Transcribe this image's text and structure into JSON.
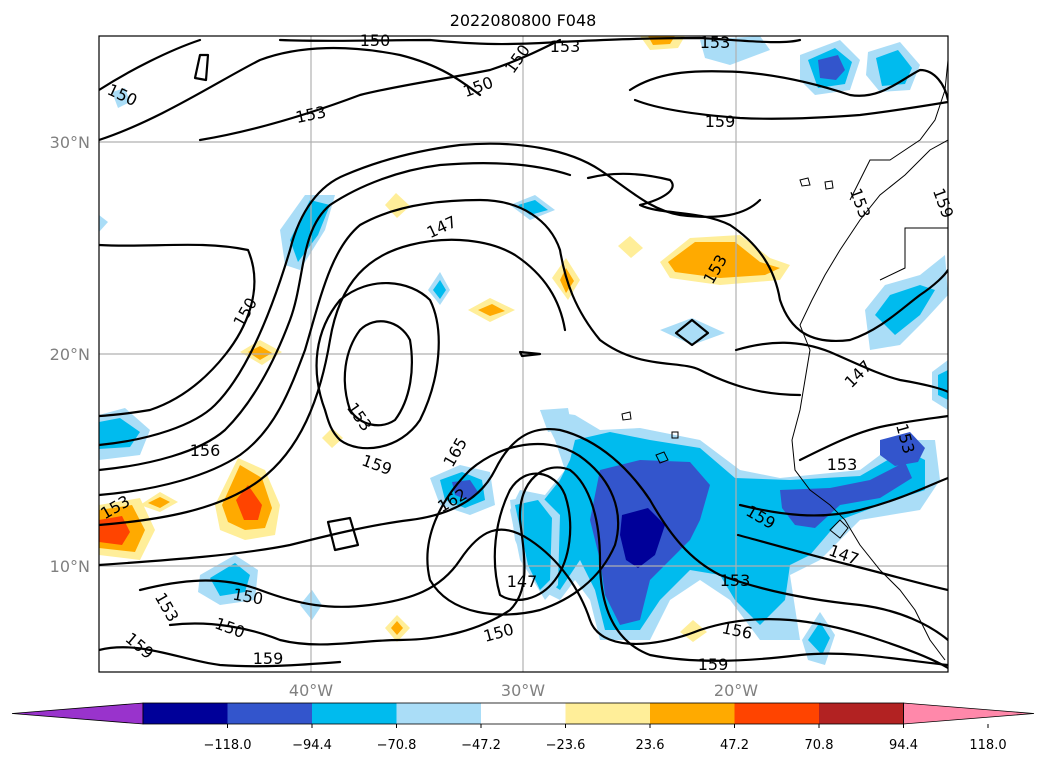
{
  "title": "2022080800 F048",
  "map": {
    "lat_ticks": [
      "30°N",
      "20°N",
      "10°N"
    ],
    "lon_ticks": [
      "40°W",
      "30°W",
      "20°W"
    ],
    "contour_labels": [
      "150",
      "153",
      "150",
      "153",
      "150",
      "150",
      "153",
      "159",
      "147",
      "150",
      "153",
      "156",
      "159",
      "165",
      "162",
      "153",
      "147",
      "150",
      "153",
      "150",
      "150",
      "159",
      "159",
      "153",
      "156",
      "159",
      "153",
      "147",
      "153",
      "159"
    ]
  },
  "colorbar": {
    "tick_labels": [
      "−118.0",
      "−94.4",
      "−70.8",
      "−47.2",
      "−23.6",
      "23.6",
      "47.2",
      "70.8",
      "94.4",
      "118.0"
    ],
    "colors": [
      "#9933cc",
      "#000099",
      "#3355cc",
      "#00bbee",
      "#aaddf7",
      "#ffffff",
      "#ffee99",
      "#ffaa00",
      "#ff4400",
      "#b22222",
      "#ff88aa"
    ]
  },
  "fill_colors": {
    "blue1": "#aaddf7",
    "blue2": "#00bbee",
    "blue3": "#3355cc",
    "blue4": "#000099",
    "orange1": "#ffee99",
    "orange2": "#ffaa00",
    "orange3": "#ff4400"
  }
}
